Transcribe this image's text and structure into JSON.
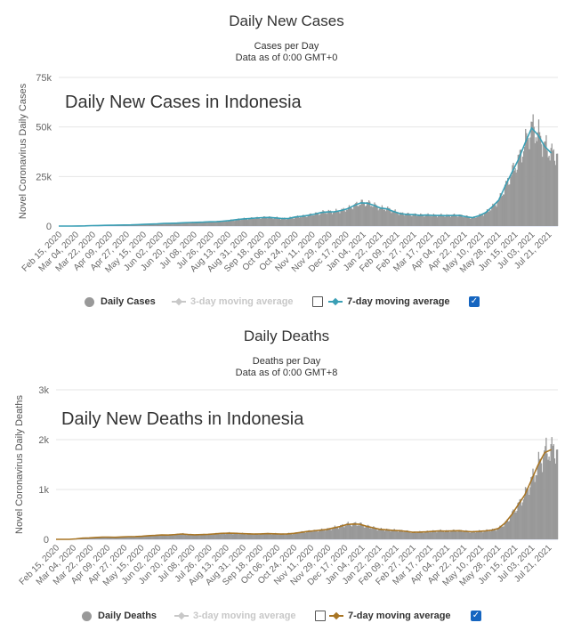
{
  "chart_data": [
    {
      "type": "bar",
      "title": "Daily New Cases",
      "subtitle": "Cases per Day",
      "subtitle2": "Data as of 0:00 GMT+0",
      "inner_title": "Daily New Cases in Indonesia",
      "ylabel": "Novel Coronavirus Daily Cases",
      "ylim": [
        0,
        75000
      ],
      "yticks": [
        0,
        25000,
        50000,
        75000
      ],
      "ytick_labels": [
        "0",
        "25k",
        "50k",
        "75k"
      ],
      "xtick_labels": [
        "Feb 15, 2020",
        "Mar 04, 2020",
        "Mar 22, 2020",
        "Apr 09, 2020",
        "Apr 27, 2020",
        "May 15, 2020",
        "Jun 02, 2020",
        "Jun 20, 2020",
        "Jul 08, 2020",
        "Jul 26, 2020",
        "Aug 13, 2020",
        "Aug 31, 2020",
        "Sep 18, 2020",
        "Oct 06, 2020",
        "Oct 24, 2020",
        "Nov 11, 2020",
        "Nov 29, 2020",
        "Dec 17, 2020",
        "Jan 04, 2021",
        "Jan 22, 2021",
        "Feb 09, 2021",
        "Feb 27, 2021",
        "Mar 17, 2021",
        "Apr 04, 2021",
        "Apr 22, 2021",
        "May 10, 2021",
        "May 28, 2021",
        "Jun 15, 2021",
        "Jul 03, 2021",
        "Jul 21, 2021"
      ],
      "grid": true,
      "bar_color": "#999999",
      "line_color": "#3a9fb5",
      "weekly_x": [
        0,
        7,
        14,
        21,
        28,
        35,
        42,
        49,
        56,
        63,
        70,
        77,
        84,
        91,
        98,
        105,
        112,
        119,
        126,
        133,
        140,
        147,
        154,
        161,
        168,
        175,
        182,
        189,
        196,
        203,
        210,
        217,
        224,
        231,
        238,
        245,
        252,
        259,
        266,
        273,
        280,
        287,
        294,
        301,
        308,
        315,
        322,
        329,
        336,
        343,
        350,
        357,
        364,
        371,
        378,
        385,
        392,
        399,
        406,
        413,
        420,
        427,
        434,
        441,
        448,
        455,
        462,
        469,
        476,
        483,
        490,
        497,
        504,
        511,
        518,
        525
      ],
      "daily_cases_weekly": [
        0,
        0,
        0,
        50,
        120,
        250,
        300,
        350,
        400,
        500,
        550,
        600,
        750,
        850,
        1000,
        1100,
        1350,
        1400,
        1500,
        1700,
        1800,
        1900,
        2000,
        2200,
        2200,
        2500,
        2800,
        3300,
        3600,
        3800,
        4100,
        4300,
        4400,
        4100,
        3800,
        3900,
        4600,
        4900,
        5500,
        6100,
        6900,
        7200,
        7300,
        7900,
        8800,
        10500,
        11800,
        11600,
        10400,
        9000,
        8700,
        7300,
        6300,
        5900,
        5800,
        5500,
        5600,
        5400,
        5400,
        5300,
        5400,
        5400,
        4700,
        4200,
        5300,
        6900,
        9800,
        13200,
        20500,
        27200,
        33800,
        42000,
        50000,
        46000,
        40000,
        36500
      ],
      "moving_avg_7day": [
        0,
        0,
        0,
        40,
        110,
        240,
        290,
        340,
        390,
        480,
        540,
        590,
        730,
        840,
        980,
        1080,
        1330,
        1390,
        1480,
        1680,
        1790,
        1880,
        1990,
        2150,
        2180,
        2480,
        2780,
        3250,
        3550,
        3780,
        4060,
        4280,
        4370,
        4110,
        3820,
        3880,
        4560,
        4880,
        5450,
        6050,
        6850,
        7150,
        7250,
        7850,
        8750,
        10400,
        11700,
        11550,
        10400,
        9050,
        8650,
        7300,
        6300,
        5900,
        5750,
        5450,
        5550,
        5350,
        5350,
        5250,
        5350,
        5350,
        4700,
        4200,
        5200,
        6800,
        9700,
        13100,
        20300,
        27000,
        33600,
        41800,
        49500,
        45800,
        40200,
        36800
      ],
      "legend": {
        "bars": "Daily Cases",
        "ma3": "3-day moving average",
        "ma7": "7-day moving average"
      }
    },
    {
      "type": "bar",
      "title": "Daily Deaths",
      "subtitle": "Deaths per Day",
      "subtitle2": "Data as of 0:00 GMT+8",
      "inner_title": "Daily New Deaths in Indonesia",
      "ylabel": "Novel Coronavirus Daily Deaths",
      "ylim": [
        0,
        3000
      ],
      "yticks": [
        0,
        1000,
        2000,
        3000
      ],
      "ytick_labels": [
        "0",
        "1k",
        "2k",
        "3k"
      ],
      "xtick_labels": [
        "Feb 15, 2020",
        "Mar 04, 2020",
        "Mar 22, 2020",
        "Apr 09, 2020",
        "Apr 27, 2020",
        "May 15, 2020",
        "Jun 02, 2020",
        "Jun 20, 2020",
        "Jul 08, 2020",
        "Jul 26, 2020",
        "Aug 13, 2020",
        "Aug 31, 2020",
        "Sep 18, 2020",
        "Oct 06, 2020",
        "Oct 24, 2020",
        "Nov 11, 2020",
        "Nov 29, 2020",
        "Dec 17, 2020",
        "Jan 04, 2021",
        "Jan 22, 2021",
        "Feb 09, 2021",
        "Feb 27, 2021",
        "Mar 17, 2021",
        "Apr 04, 2021",
        "Apr 22, 2021",
        "May 10, 2021",
        "May 28, 2021",
        "Jun 15, 2021",
        "Jul 03, 2021",
        "Jul 21, 2021"
      ],
      "grid": true,
      "bar_color": "#999999",
      "line_color": "#a87524",
      "weekly_x": [
        0,
        7,
        14,
        21,
        28,
        35,
        42,
        49,
        56,
        63,
        70,
        77,
        84,
        91,
        98,
        105,
        112,
        119,
        126,
        133,
        140,
        147,
        154,
        161,
        168,
        175,
        182,
        189,
        196,
        203,
        210,
        217,
        224,
        231,
        238,
        245,
        252,
        259,
        266,
        273,
        280,
        287,
        294,
        301,
        308,
        315,
        322,
        329,
        336,
        343,
        350,
        357,
        364,
        371,
        378,
        385,
        392,
        399,
        406,
        413,
        420,
        427,
        434,
        441,
        448,
        455,
        462,
        469,
        476,
        483,
        490,
        497,
        504,
        511,
        518,
        525
      ],
      "daily_deaths_weekly": [
        0,
        0,
        0,
        10,
        25,
        30,
        40,
        45,
        45,
        40,
        50,
        55,
        55,
        60,
        75,
        80,
        90,
        85,
        95,
        110,
        95,
        90,
        95,
        100,
        110,
        120,
        125,
        120,
        115,
        110,
        105,
        110,
        115,
        110,
        105,
        110,
        120,
        140,
        160,
        170,
        185,
        200,
        230,
        260,
        300,
        310,
        300,
        260,
        230,
        200,
        190,
        180,
        175,
        160,
        140,
        145,
        150,
        160,
        170,
        165,
        170,
        175,
        160,
        150,
        160,
        170,
        185,
        220,
        330,
        500,
        700,
        900,
        1200,
        1500,
        1750,
        1800
      ],
      "moving_avg_7day": [
        0,
        0,
        0,
        9,
        23,
        29,
        38,
        44,
        44,
        41,
        49,
        54,
        55,
        60,
        74,
        79,
        88,
        86,
        94,
        108,
        96,
        91,
        95,
        100,
        109,
        119,
        124,
        121,
        116,
        111,
        106,
        109,
        114,
        111,
        106,
        109,
        119,
        138,
        158,
        169,
        184,
        199,
        228,
        258,
        297,
        308,
        301,
        262,
        232,
        202,
        191,
        181,
        174,
        161,
        141,
        144,
        150,
        159,
        169,
        165,
        170,
        174,
        161,
        151,
        159,
        169,
        184,
        218,
        326,
        495,
        695,
        895,
        1190,
        1490,
        1740,
        1800
      ],
      "legend": {
        "bars": "Daily Deaths",
        "ma3": "3-day moving average",
        "ma7": "7-day moving average"
      }
    }
  ]
}
